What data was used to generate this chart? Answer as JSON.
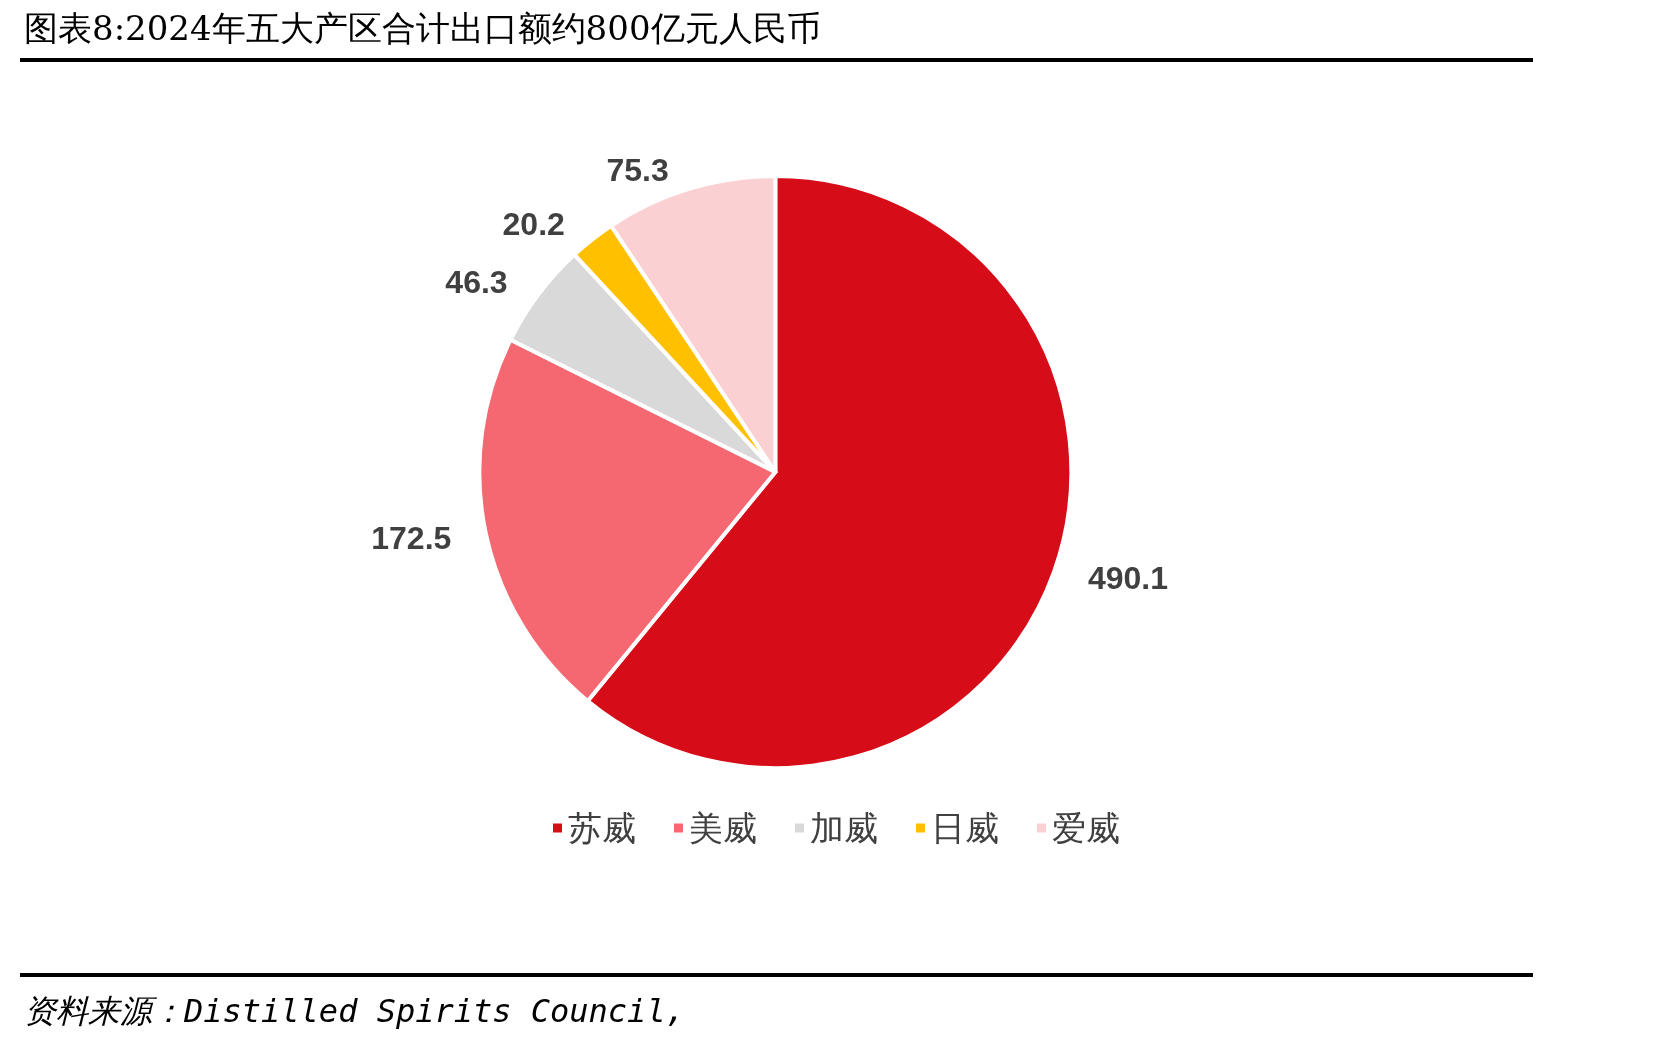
{
  "chart_data": {
    "type": "pie",
    "title": "图表8:2024年五大产区合计出口额约800亿元人民币",
    "categories": [
      "苏威",
      "美威",
      "加威",
      "日威",
      "爱威"
    ],
    "values": [
      490.1,
      172.5,
      46.3,
      20.2,
      75.3
    ],
    "colors": [
      "#d60c18",
      "#f56871",
      "#d9d9d9",
      "#ffc000",
      "#fbd0d3"
    ],
    "data_labels": true,
    "legend": "bottom",
    "annotations": [
      "资料来源：Distilled Spirits Council,"
    ]
  }
}
